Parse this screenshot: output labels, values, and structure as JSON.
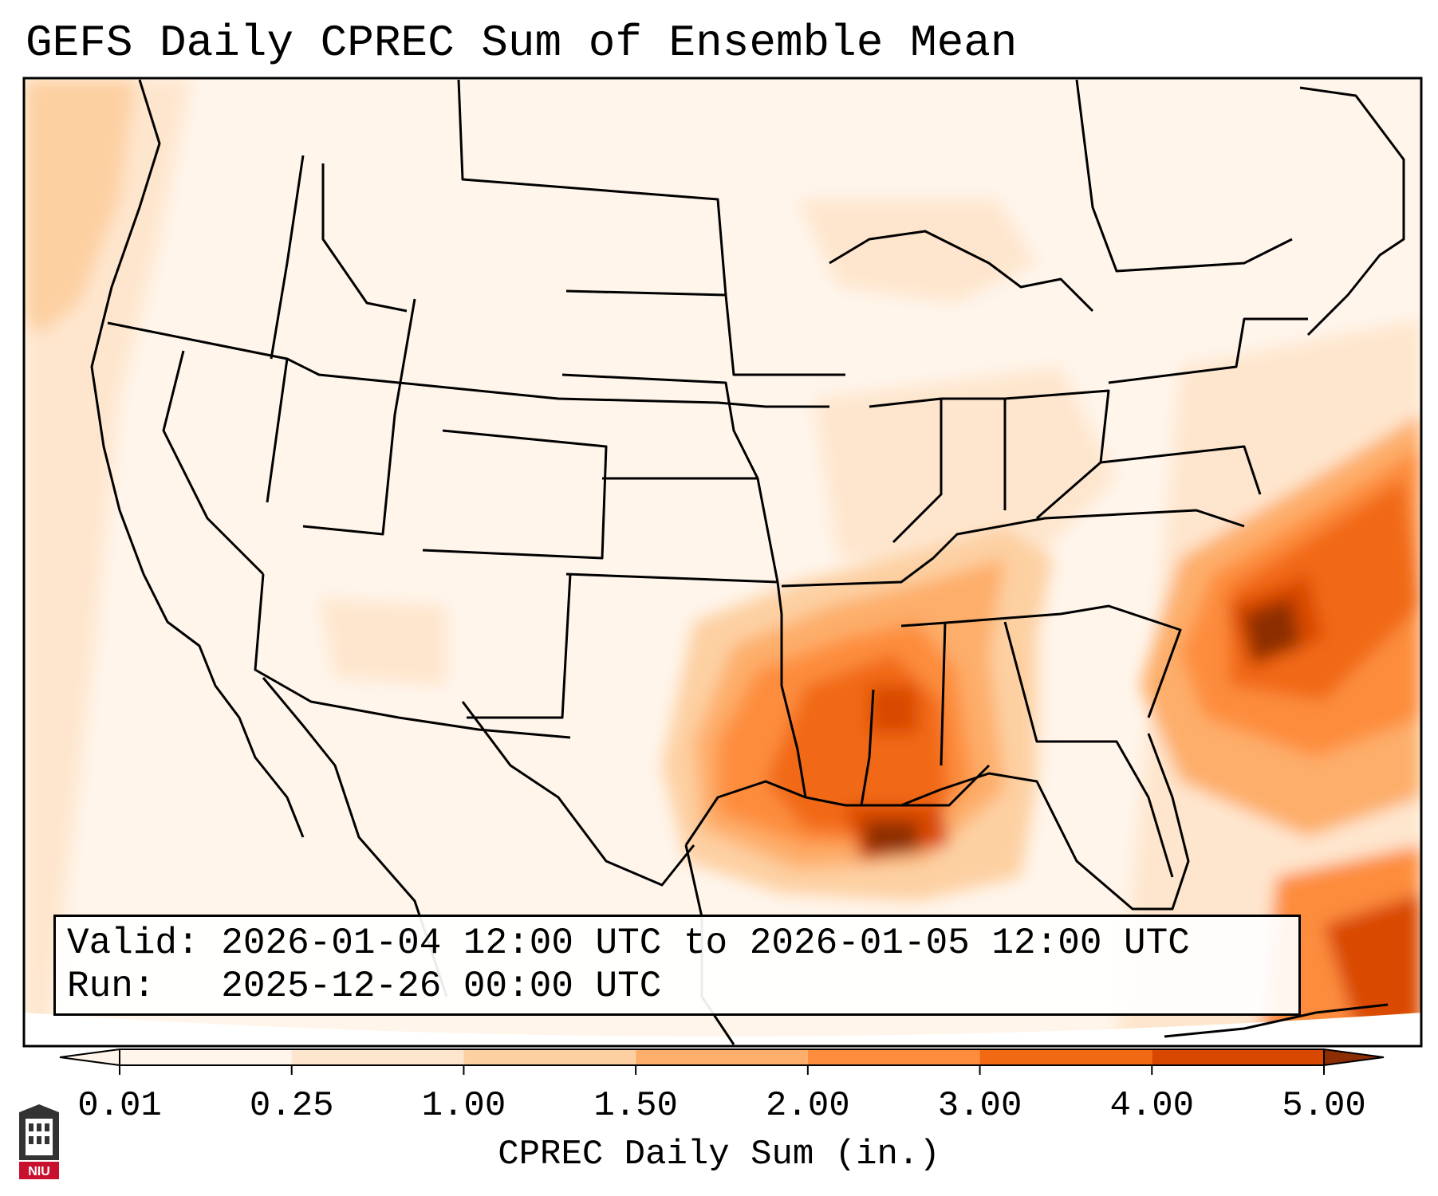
{
  "header": {
    "title": "GEFS Daily CPREC Sum of Ensemble Mean"
  },
  "info_box": {
    "valid_label": "Valid:",
    "valid_value": "2026-01-04 12:00 UTC to 2026-01-05 12:00 UTC",
    "run_label": "Run:",
    "run_value": "2025-12-26 00:00 UTC"
  },
  "colorbar": {
    "label": "CPREC Daily Sum (in.)",
    "ticks": [
      "0.01",
      "0.25",
      "1.00",
      "1.50",
      "2.00",
      "3.00",
      "4.00",
      "5.00"
    ],
    "colors": [
      "#fff5eb",
      "#fee6ce",
      "#fdd0a2",
      "#fdae6b",
      "#fd8d3c",
      "#f16913",
      "#d94801",
      "#8c2d04"
    ],
    "extend": "both"
  },
  "legend": {
    "logo_text": "NIU"
  }
}
